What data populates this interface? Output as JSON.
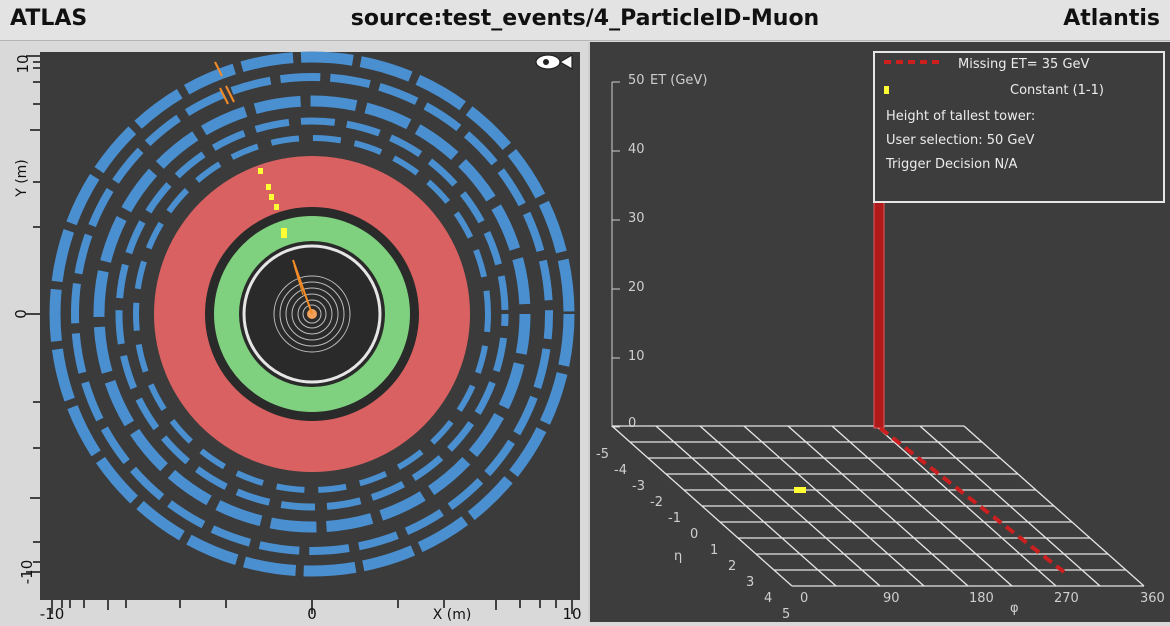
{
  "titlebar": {
    "left": "ATLAS",
    "center": "source:test_events/4_ParticleID-Muon",
    "right": "Atlantis"
  },
  "left_view": {
    "y_axis_label": "Y (m)",
    "x_axis_label": "X (m)",
    "y_ticks": [
      "10",
      "0",
      "-10"
    ],
    "x_ticks": [
      "-10",
      "0",
      "10"
    ],
    "fish_eye_icon": "fish-eye-icon",
    "colors": {
      "background": "#3b3b3b",
      "muon_chambers": "#4a8fd0",
      "hadronic_calorimeter": "#d96161",
      "em_calorimeter": "#7fd07f",
      "tracks": "#f28c28",
      "yellow_hits": "#ffff33"
    }
  },
  "right_view": {
    "z_axis_label": "ET (GeV)",
    "z_ticks": [
      "50",
      "40",
      "30",
      "20",
      "10",
      "0"
    ],
    "eta_label": "η",
    "eta_ticks": [
      "-5",
      "-4",
      "-3",
      "-2",
      "-1",
      "0",
      "1",
      "2",
      "3",
      "4",
      "5"
    ],
    "phi_label": "φ",
    "phi_ticks": [
      "0",
      "90",
      "180",
      "270",
      "360"
    ],
    "legend": {
      "missing_et": "Missing ET= 35 GeV",
      "constant": "Constant (1-1)",
      "height_label": "Height of tallest tower:",
      "user_selection": "User selection: 50 GeV",
      "trigger": "Trigger Decision N/A"
    },
    "colors": {
      "missing_et_line": "#cc1f1f",
      "tower": "#b01a1a",
      "constant_marker": "#ffff33",
      "grid": "#e6e6e6"
    }
  }
}
